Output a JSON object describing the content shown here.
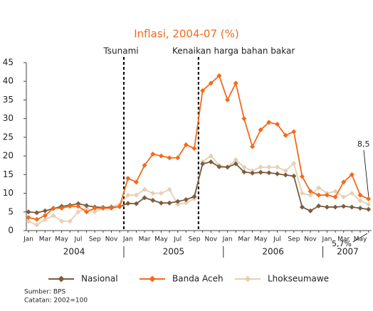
{
  "chart_data": {
    "type": "line",
    "title": "Inflasi, 2004-07 (%)",
    "categories": [
      "Jan",
      null,
      "Mar",
      null,
      "May",
      null,
      "Jul",
      null,
      "Sep",
      null,
      "Nov",
      null,
      "Jan",
      null,
      "Mar",
      null,
      "May",
      null,
      "Jul",
      null,
      "Sep",
      null,
      "Nov",
      null,
      "Jan",
      null,
      "Mar",
      null,
      "May",
      null,
      "Jul",
      null,
      "Sep",
      null,
      "Nov",
      null,
      "Jan",
      null,
      "Mar",
      null,
      "May",
      null
    ],
    "years": [
      "2004",
      "2005",
      "2006",
      "2007"
    ],
    "series": [
      {
        "name": "Nasional",
        "color": "#7b5b3c",
        "values": [
          5,
          4.8,
          5.3,
          5.9,
          6.5,
          6.8,
          7.2,
          6.7,
          6.3,
          6.2,
          6.2,
          6.4,
          7.3,
          7.2,
          8.8,
          8.1,
          7.4,
          7.4,
          7.8,
          8.3,
          9.1,
          17.9,
          18.4,
          17.1,
          17,
          17.9,
          15.7,
          15.4,
          15.6,
          15.5,
          15.2,
          14.9,
          14.6,
          6.3,
          5.3,
          6.6,
          6.3,
          6.3,
          6.5,
          6.3,
          6.0,
          5.7
        ]
      },
      {
        "name": "Banda Aceh",
        "color": "#f26a1b",
        "values": [
          3.5,
          3,
          4,
          6,
          6,
          6.5,
          6.5,
          5,
          6,
          6,
          6,
          6.5,
          14,
          13,
          17.5,
          20.5,
          20,
          19.5,
          19.5,
          23,
          22,
          37.5,
          39.5,
          41.5,
          35,
          39.5,
          30,
          22.5,
          27,
          29,
          28.5,
          25.5,
          26.5,
          14.5,
          10.5,
          9.5,
          9.5,
          9,
          13,
          15,
          9.5,
          8.5
        ]
      },
      {
        "name": "Lhokseumawe",
        "color": "#e8cfb2",
        "values": [
          2.5,
          1.5,
          3,
          4,
          2.5,
          2.5,
          5,
          6,
          5,
          6,
          6.5,
          7,
          9.5,
          9.5,
          11,
          10,
          10,
          11,
          7,
          7.5,
          8.5,
          18.5,
          20,
          17.5,
          17,
          19,
          17,
          16,
          17,
          17,
          17,
          16,
          18,
          10,
          9.5,
          11.5,
          10,
          10.5,
          9,
          10,
          8,
          7
        ]
      }
    ],
    "ylim": [
      0,
      45
    ],
    "yticks": [
      0,
      5,
      10,
      15,
      20,
      25,
      30,
      35,
      40,
      45
    ],
    "events": [
      "Tsunami",
      "Kenaikan harga bahan bakar"
    ],
    "annotations": [
      "8,5",
      "5,7%"
    ],
    "source": "Sumber: BPS",
    "note": "Catatan: 2002=100"
  }
}
